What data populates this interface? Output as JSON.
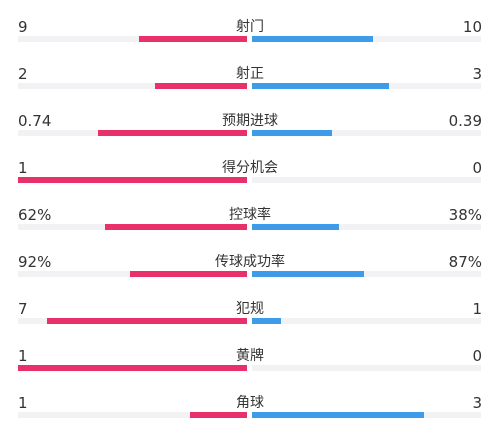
{
  "colors": {
    "home": "#e8306b",
    "away": "#3d9bea",
    "track": "#f2f2f4"
  },
  "stats": [
    {
      "name": "射门",
      "left": "9",
      "right": "10",
      "left_share": 0.47,
      "right_share": 0.53
    },
    {
      "name": "射正",
      "left": "2",
      "right": "3",
      "left_share": 0.4,
      "right_share": 0.6
    },
    {
      "name": "预期进球",
      "left": "0.74",
      "right": "0.39",
      "left_share": 0.65,
      "right_share": 0.35
    },
    {
      "name": "得分机会",
      "left": "1",
      "right": "0",
      "left_share": 1.0,
      "right_share": 0.0
    },
    {
      "name": "控球率",
      "left": "62%",
      "right": "38%",
      "left_share": 0.62,
      "right_share": 0.38
    },
    {
      "name": "传球成功率",
      "left": "92%",
      "right": "87%",
      "left_share": 0.51,
      "right_share": 0.49
    },
    {
      "name": "犯规",
      "left": "7",
      "right": "1",
      "left_share": 0.875,
      "right_share": 0.125
    },
    {
      "name": "黄牌",
      "left": "1",
      "right": "0",
      "left_share": 1.0,
      "right_share": 0.0
    },
    {
      "name": "角球",
      "left": "1",
      "right": "3",
      "left_share": 0.25,
      "right_share": 0.75
    }
  ]
}
